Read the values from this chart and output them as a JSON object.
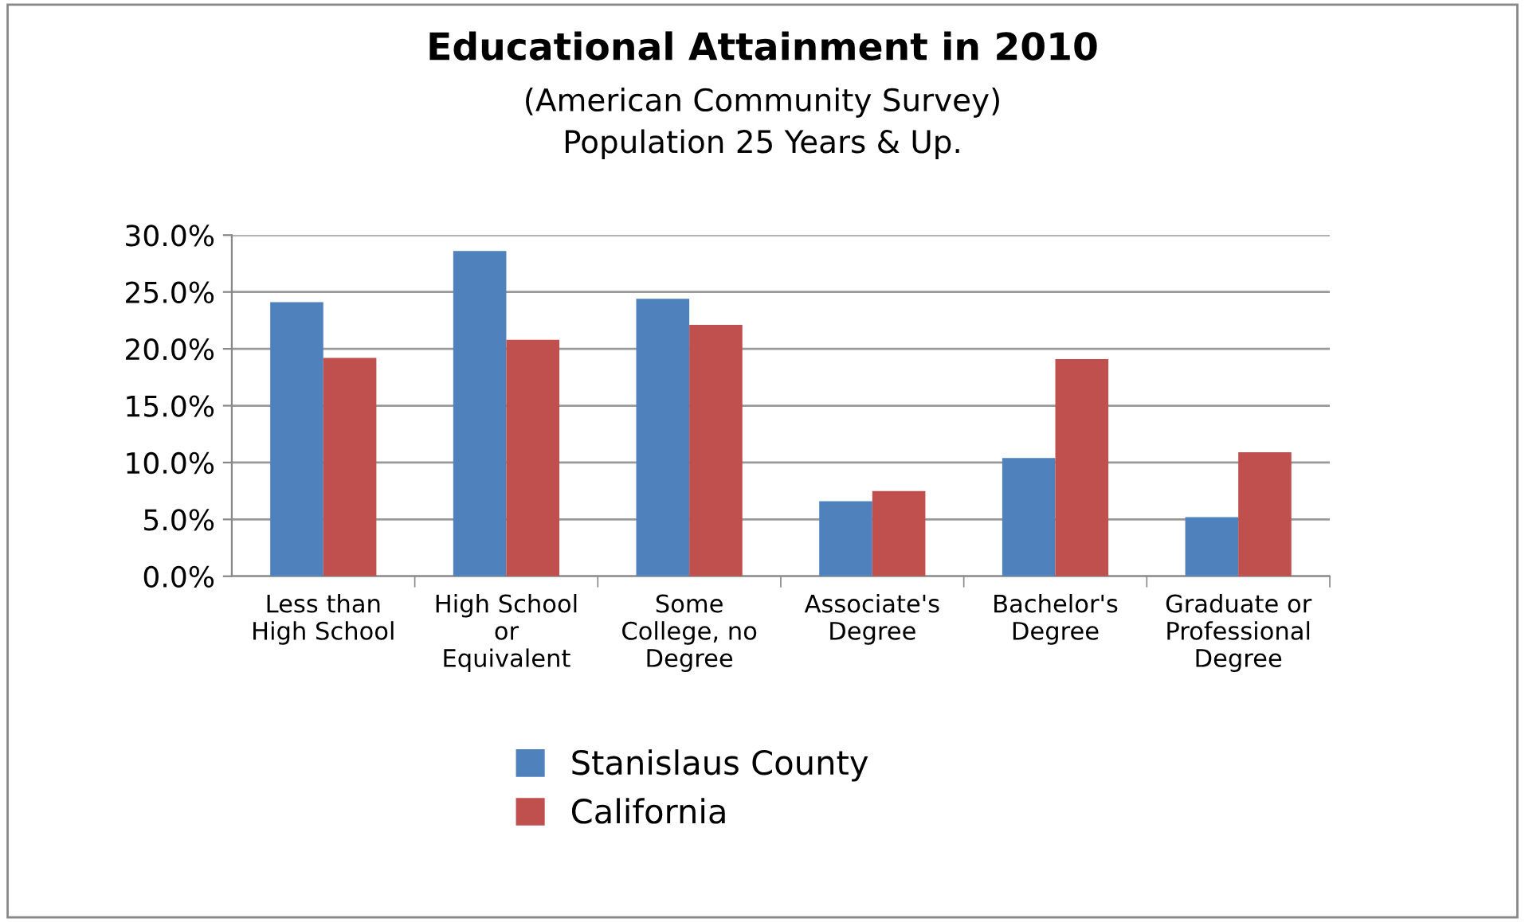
{
  "chart_data": {
    "type": "bar",
    "title": "Educational Attainment in 2010",
    "subtitle": "(American Community Survey)\nPopulation 25 Years & Up.",
    "categories": [
      "Less than\nHigh School",
      "High School\nor\nEquivalent",
      "Some\nCollege, no\nDegree",
      "Associate's\nDegree",
      "Bachelor's\nDegree",
      "Graduate or\nProfessional\nDegree"
    ],
    "series": [
      {
        "name": "Stanislaus County",
        "color": "#4f81bd",
        "values": [
          24.1,
          28.6,
          24.4,
          6.6,
          10.4,
          5.2
        ]
      },
      {
        "name": "California",
        "color": "#c0504d",
        "values": [
          19.2,
          20.8,
          22.1,
          7.5,
          19.1,
          10.9
        ]
      }
    ],
    "ylim": [
      0,
      30
    ],
    "yticks": [
      {
        "value": 0,
        "label": "0.0%"
      },
      {
        "value": 5,
        "label": "5.0%"
      },
      {
        "value": 10,
        "label": "10.0%"
      },
      {
        "value": 15,
        "label": "15.0%"
      },
      {
        "value": 20,
        "label": "20.0%"
      },
      {
        "value": 25,
        "label": "25.0%"
      },
      {
        "value": 30,
        "label": "30.0%"
      }
    ],
    "grid": "y",
    "legend": "bottom"
  }
}
